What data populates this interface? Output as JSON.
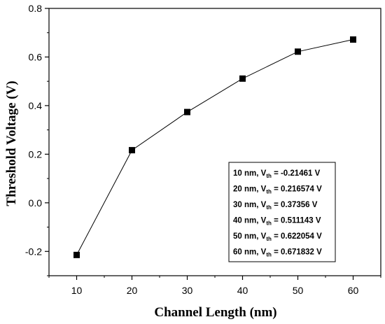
{
  "chart_data": {
    "type": "line",
    "title": "",
    "xlabel": "Channel Length (nm)",
    "ylabel": "Threshold Voltage (V)",
    "xlim": [
      5,
      65
    ],
    "ylim": [
      -0.3,
      0.8
    ],
    "x_ticks": [
      10,
      20,
      30,
      40,
      50,
      60
    ],
    "x_tick_labels": [
      "10",
      "20",
      "30",
      "40",
      "50",
      "60"
    ],
    "y_ticks": [
      -0.2,
      0.0,
      0.2,
      0.4,
      0.6,
      0.8
    ],
    "y_tick_labels": [
      "-0.2",
      "0.0",
      "0.2",
      "0.4",
      "0.6",
      "0.8"
    ],
    "grid": false,
    "marker": "square",
    "color": "#000000",
    "series": [
      {
        "x": [
          10,
          20,
          30,
          40,
          50,
          60
        ],
        "y": [
          -0.21461,
          0.216574,
          0.37356,
          0.511143,
          0.622054,
          0.671832
        ]
      }
    ],
    "legend_placement": "bottom-right",
    "annotation_rows": [
      {
        "prefix": "10 nm, V",
        "sub": "th",
        "suffix": " = -0.21461 V"
      },
      {
        "prefix": "20 nm, V",
        "sub": "th",
        "suffix": " = 0.216574 V"
      },
      {
        "prefix": "30 nm, V",
        "sub": "th",
        "suffix": " = 0.37356 V"
      },
      {
        "prefix": "40 nm, V",
        "sub": "th",
        "suffix": " = 0.511143 V"
      },
      {
        "prefix": "50 nm, V",
        "sub": "th",
        "suffix": " = 0.622054 V"
      },
      {
        "prefix": "60 nm, V",
        "sub": "th",
        "suffix": " = 0.671832 V"
      }
    ]
  }
}
